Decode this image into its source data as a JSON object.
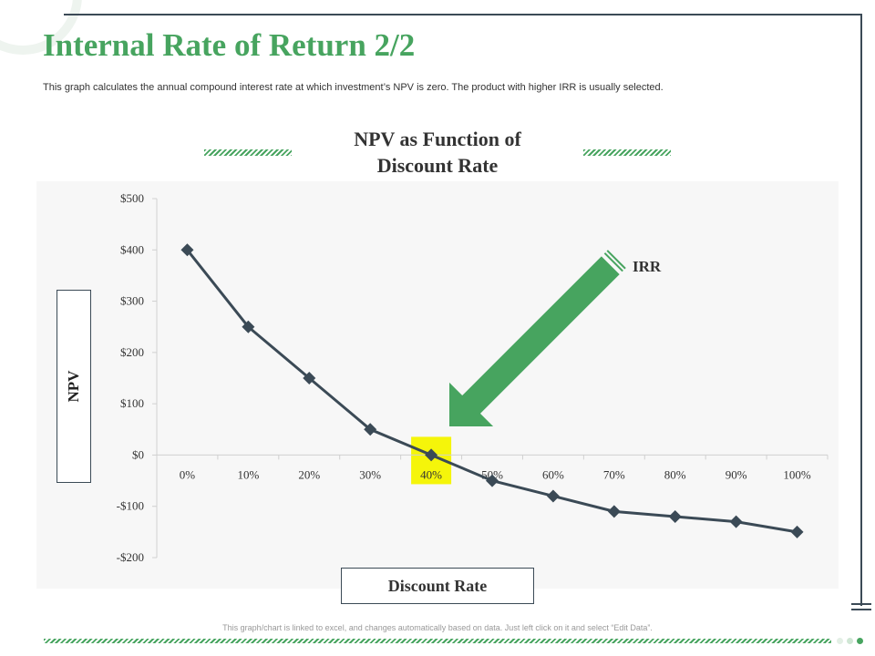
{
  "page": {
    "title": "Internal Rate of Return 2/2",
    "subtitle": "This graph calculates the annual compound interest rate at which investment’s NPV is zero. The product with higher IRR is usually selected.",
    "footer_note": "This graph/chart is linked to excel, and changes automatically based on data. Just left click on it and select “Edit Data”."
  },
  "colors": {
    "accent": "#47a45f",
    "line": "#3b4a56",
    "highlight": "#f5f50a",
    "plot_bg": "#f7f7f7"
  },
  "chart_data": {
    "type": "line",
    "title_lines": [
      "NPV as Function of",
      "Discount Rate"
    ],
    "xlabel": "Discount Rate",
    "ylabel": "NPV",
    "categories": [
      "0%",
      "10%",
      "20%",
      "30%",
      "40%",
      "50%",
      "60%",
      "70%",
      "80%",
      "90%",
      "100%"
    ],
    "series": [
      {
        "values": [
          400,
          250,
          150,
          50,
          0,
          -50,
          -80,
          -110,
          -120,
          -130,
          -150
        ]
      }
    ],
    "y_ticks": [
      500,
      400,
      300,
      200,
      100,
      0,
      -100,
      -200
    ],
    "y_tick_labels": [
      "$500",
      "$400",
      "$300",
      "$200",
      "$100",
      "$0",
      "-$100",
      "-$200"
    ],
    "ylim": [
      -200,
      500
    ],
    "grid": false,
    "marker": "diamond",
    "annotation": {
      "text": "IRR",
      "category_index": 4
    }
  }
}
